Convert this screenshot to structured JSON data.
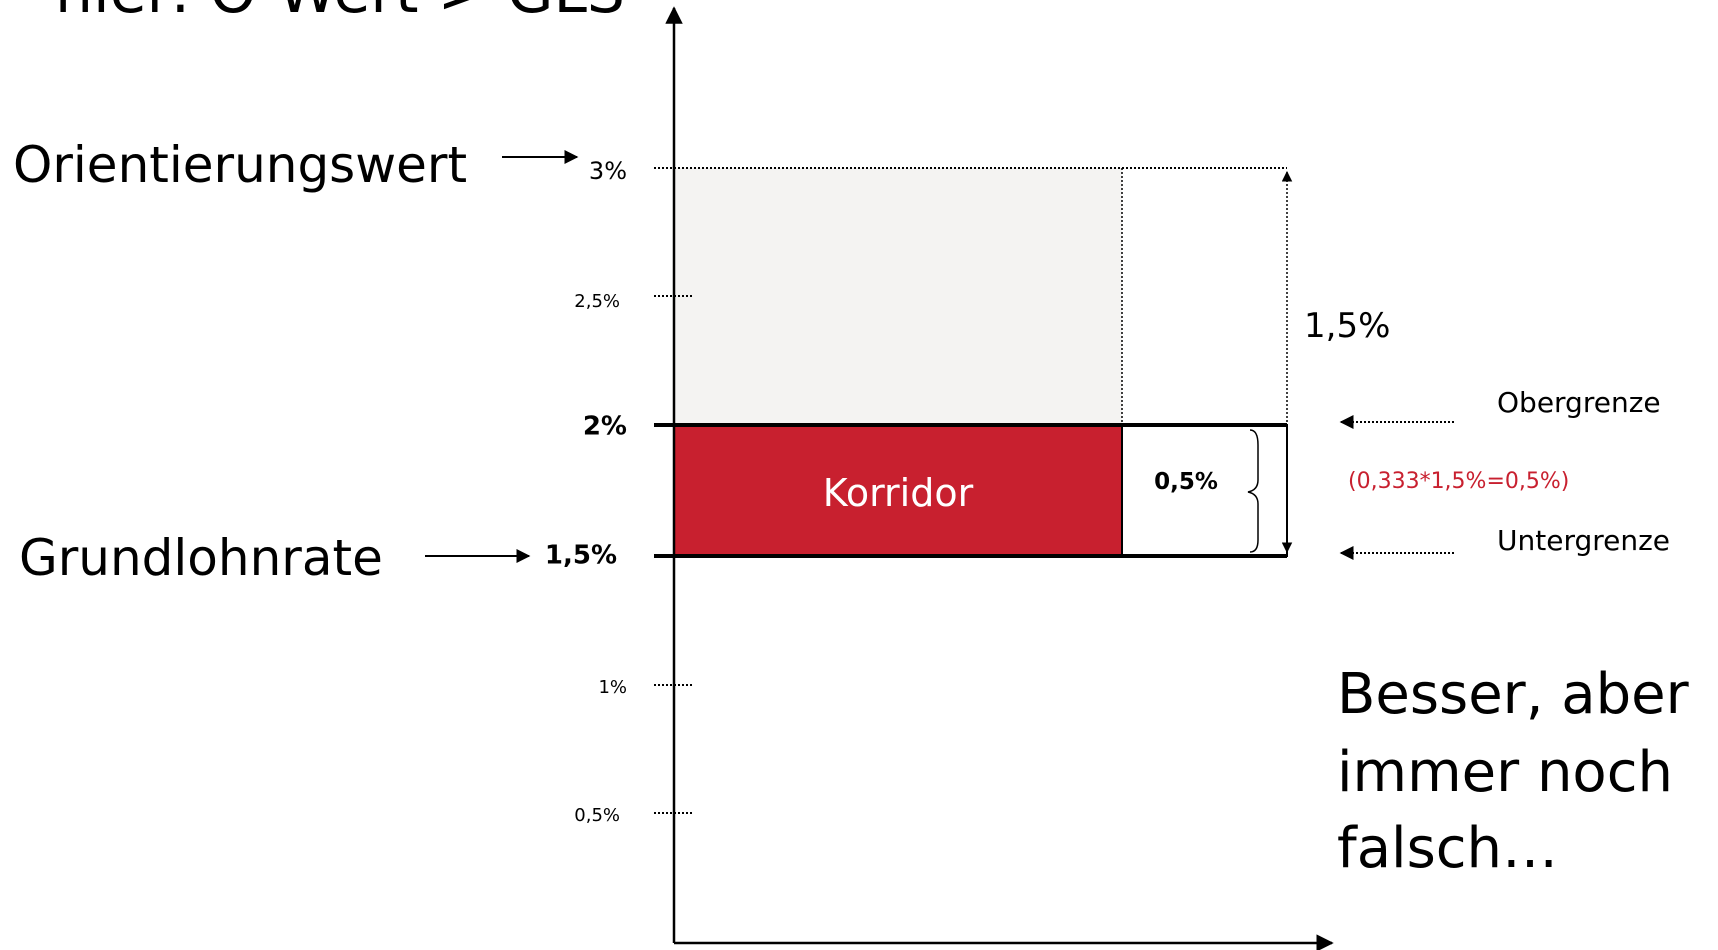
{
  "title": "hier: O-Wert > GLS",
  "labels": {
    "orientierungswert": "Orientierungswert",
    "grundlohnrate": "Grundlohnrate"
  },
  "ticks": [
    "3%",
    "2,5%",
    "2%",
    "1,5%",
    "1%",
    "0,5%"
  ],
  "korridor": "Korridor",
  "korridor_width": "0,5%",
  "span": "1,5%",
  "obergrenze": "Obergrenze",
  "untergrenze": "Untergrenze",
  "formula": "(0,333*1,5%=0,5%)",
  "comment": [
    "Besser, aber",
    "immer noch",
    "falsch…"
  ]
}
